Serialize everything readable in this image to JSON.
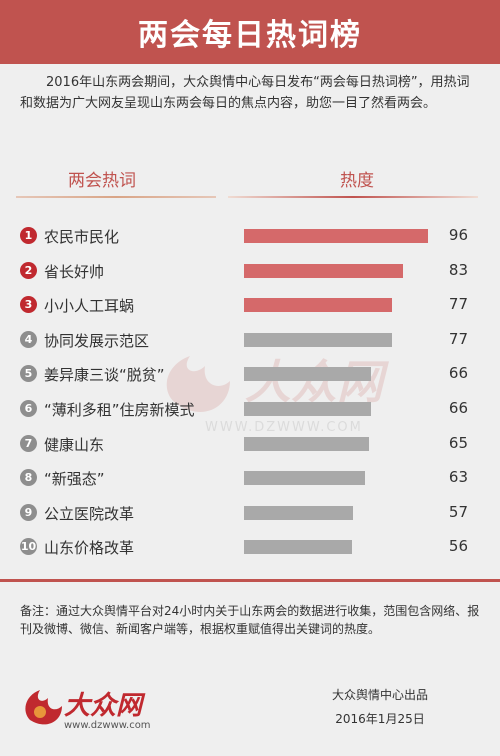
{
  "header": {
    "title": "两会每日热词榜"
  },
  "intro": "2016年山东两会期间，大众舆情中心每日发布“两会每日热词榜”，用热词和数据为广大网友呈现山东两会每日的焦点内容，助您一目了然看两会。",
  "columns": {
    "term": "两会热词",
    "heat": "热度"
  },
  "colors": {
    "accent": "#c0534f",
    "top_bar": "#d5696a",
    "other_bar": "#a9a9a9",
    "top_badge": "#c0292f",
    "other_badge": "#8e8e8e"
  },
  "watermark": {
    "brand": "大众网",
    "url": "WWW.DZWWW.COM",
    "icon": "flame-logo-icon"
  },
  "chart_data": {
    "type": "bar",
    "orientation": "horizontal",
    "title": "两会每日热词榜",
    "xlabel": "热度",
    "ylabel": "两会热词",
    "xlim": [
      0,
      100
    ],
    "grid": false,
    "categories": [
      "农民市民化",
      "省长好帅",
      "小小人工耳蜗",
      "协同发展示范区",
      "姜异康三谈“脱贫”",
      "“薄利多租”住房新模式",
      "健康山东",
      "“新强态”",
      "公立医院改革",
      "山东价格改革"
    ],
    "ranks": [
      "1",
      "2",
      "3",
      "4",
      "5",
      "6",
      "7",
      "8",
      "9",
      "10"
    ],
    "values": [
      96,
      83,
      77,
      77,
      66,
      66,
      65,
      63,
      57,
      56
    ]
  },
  "footer": {
    "note": "备注：通过大众舆情平台对24小时内关于山东两会的数据进行收集，范围包含网络、报刊及微博、微信、新闻客户端等，根据权重赋值得出关键词的热度。",
    "logo_brand": "大众网",
    "logo_url": "www.dzwww.com",
    "credit": "大众舆情中心出品",
    "date": "2016年1月25日"
  }
}
